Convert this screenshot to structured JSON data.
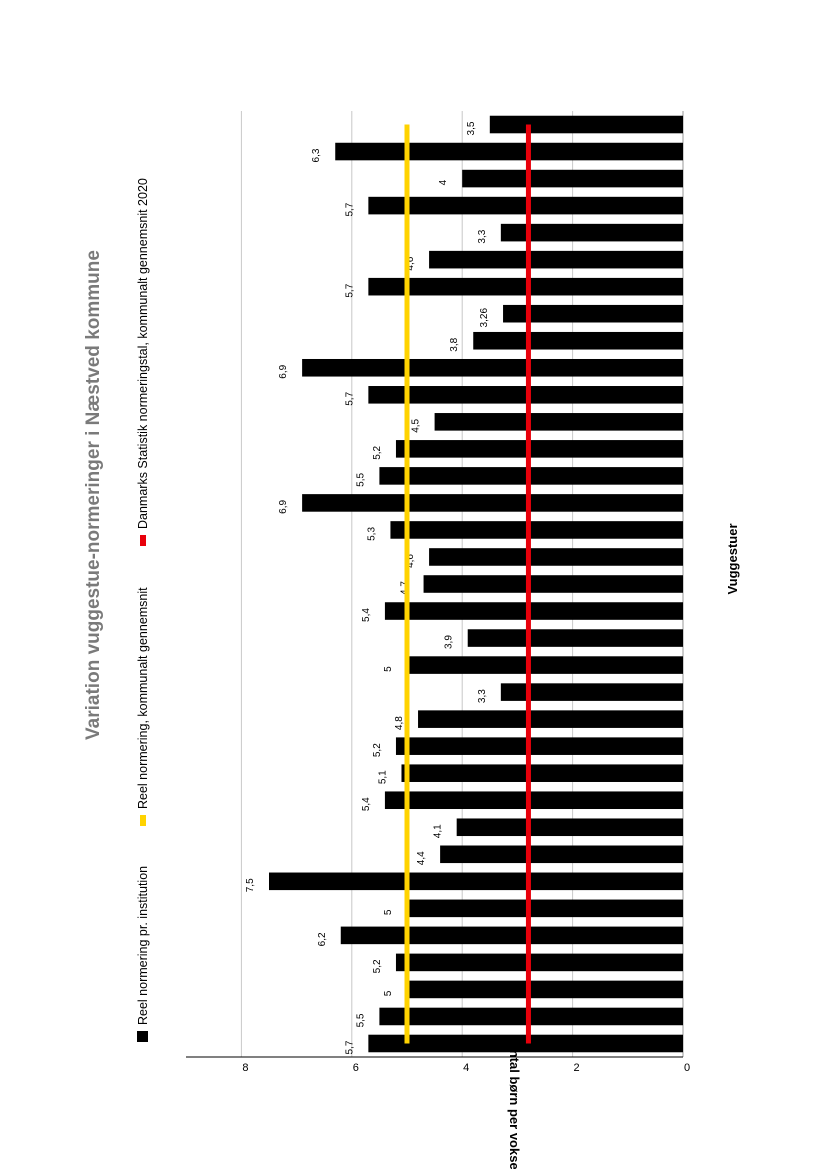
{
  "colors": {
    "bar": "#000000",
    "avg_line": "#FFD300",
    "dst_line": "#E8000B",
    "grid": "#c8c8c8",
    "title": "#7a7a7a"
  },
  "chart_data": {
    "type": "bar",
    "orientation": "horizontal",
    "rotated_page": true,
    "title": "Variation vuggestue-normeringer i Næstved kommune",
    "xlabel": "Vuggestuer",
    "ylabel": "Antal børn per voksen",
    "ylim": [
      0,
      9
    ],
    "yticks": [
      "0",
      "2",
      "4",
      "6",
      "8"
    ],
    "grid": true,
    "legend_position": "top",
    "series": [
      {
        "name": "Reel normering pr. institution",
        "values": [
          5.7,
          5.5,
          5,
          5.2,
          6.2,
          5,
          7.5,
          4.4,
          4.1,
          5.4,
          5.1,
          5.2,
          4.8,
          3.3,
          5,
          3.9,
          5.4,
          4.7,
          4.6,
          5.3,
          6.9,
          5.5,
          5.2,
          4.5,
          5.7,
          6.9,
          3.8,
          3.26,
          5.7,
          4.6,
          3.3,
          5.7,
          4,
          6.3,
          3.5
        ],
        "labels": [
          "5,7",
          "5,5",
          "5",
          "5,2",
          "6,2",
          "5",
          "7,5",
          "4,4",
          "4,1",
          "5,4",
          "5,1",
          "5,2",
          "4,8",
          "3,3",
          "5",
          "3,9",
          "5,4",
          "4,7",
          "4,6",
          "5,3",
          "6,9",
          "5,5",
          "5,2",
          "4,5",
          "5,7",
          "6,9",
          "3,8",
          "3,26",
          "5,7",
          "4,6",
          "3,3",
          "5,7",
          "4",
          "6,3",
          "3,5"
        ]
      },
      {
        "name": "Reel normering, kommunalt gennemsnit",
        "value": 5.0
      },
      {
        "name": "Danmarks Statistik normeringstal, kommunalt gennemsnit 2020",
        "value": 2.8
      }
    ]
  }
}
